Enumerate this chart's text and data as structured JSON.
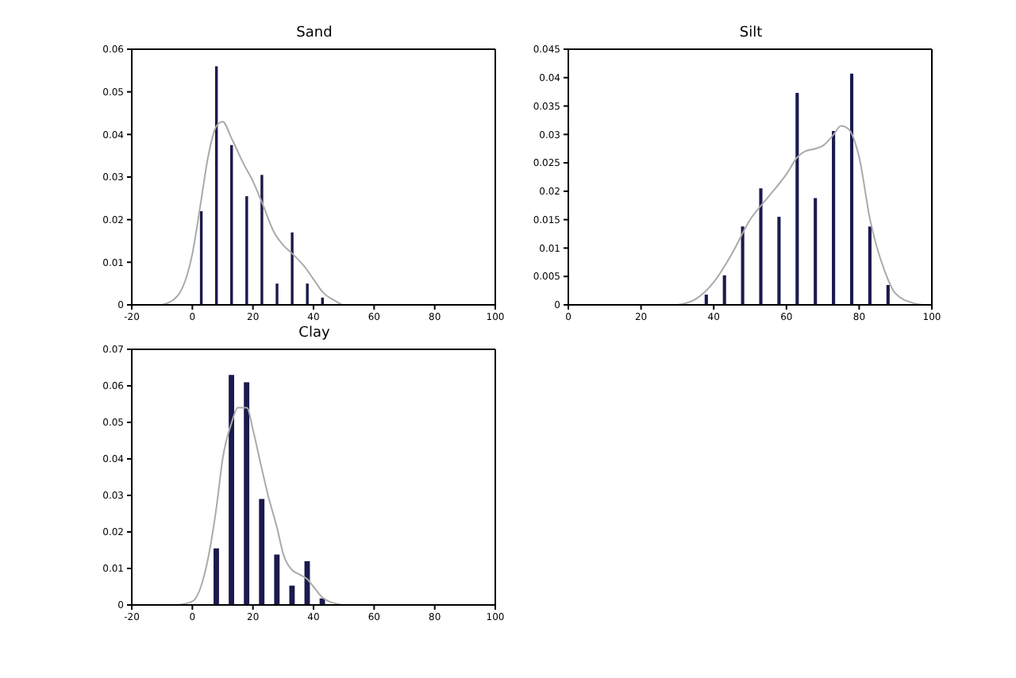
{
  "chart_data": [
    {
      "type": "bar",
      "title": "Sand",
      "xlim": [
        -20,
        100
      ],
      "xticks": [
        -20,
        0,
        20,
        40,
        60,
        80,
        100
      ],
      "ylim": [
        0,
        0.06
      ],
      "yticks": [
        0,
        0.01,
        0.02,
        0.03,
        0.04,
        0.05,
        0.06
      ],
      "grid": false,
      "legend": false,
      "series": [
        {
          "color": "#1a1a4e",
          "x": [
            3,
            8,
            13,
            18,
            23,
            28,
            33,
            38,
            43
          ],
          "values": [
            0.022,
            0.056,
            0.0375,
            0.0255,
            0.0305,
            0.005,
            0.017,
            0.005,
            0.0017
          ]
        },
        {
          "type": "line",
          "color": "#aaaaaa",
          "x": [
            -10,
            -5,
            0,
            3,
            5,
            8,
            10,
            13,
            17,
            20,
            23,
            27,
            30,
            33,
            37,
            40,
            43,
            47,
            50,
            55
          ],
          "values": [
            0,
            0.002,
            0.012,
            0.025,
            0.034,
            0.042,
            0.043,
            0.039,
            0.033,
            0.029,
            0.024,
            0.017,
            0.014,
            0.012,
            0.009,
            0.006,
            0.003,
            0.001,
            0,
            0
          ]
        }
      ]
    },
    {
      "type": "bar",
      "title": "Silt",
      "xlim": [
        0,
        100
      ],
      "xticks": [
        0,
        20,
        40,
        60,
        80,
        100
      ],
      "ylim": [
        0,
        0.045
      ],
      "yticks": [
        0,
        0.005,
        0.01,
        0.015,
        0.02,
        0.025,
        0.03,
        0.035,
        0.04,
        0.045
      ],
      "grid": false,
      "legend": false,
      "series": [
        {
          "color": "#1a1a4e",
          "x": [
            38,
            43,
            48,
            53,
            58,
            63,
            68,
            73,
            78,
            83,
            88
          ],
          "values": [
            0.0018,
            0.0052,
            0.0138,
            0.0205,
            0.0155,
            0.0373,
            0.0188,
            0.0306,
            0.0407,
            0.0138,
            0.0035
          ]
        },
        {
          "type": "line",
          "color": "#aaaaaa",
          "x": [
            30,
            35,
            40,
            45,
            50,
            55,
            60,
            63,
            65,
            68,
            70,
            73,
            75,
            77,
            80,
            83,
            87,
            90,
            95,
            98
          ],
          "values": [
            0,
            0.001,
            0.004,
            0.009,
            0.015,
            0.019,
            0.023,
            0.026,
            0.027,
            0.0275,
            0.028,
            0.03,
            0.0315,
            0.031,
            0.026,
            0.015,
            0.006,
            0.002,
            0.0003,
            0
          ]
        }
      ]
    },
    {
      "type": "bar",
      "title": "Clay",
      "xlim": [
        -20,
        100
      ],
      "xticks": [
        -20,
        0,
        20,
        40,
        60,
        80,
        100
      ],
      "ylim": [
        0,
        0.07
      ],
      "yticks": [
        0,
        0.01,
        0.02,
        0.03,
        0.04,
        0.05,
        0.06,
        0.07
      ],
      "grid": false,
      "legend": false,
      "series": [
        {
          "color": "#1a1a4e",
          "x": [
            8,
            13,
            18,
            23,
            28,
            33,
            38,
            43
          ],
          "values": [
            0.0155,
            0.063,
            0.061,
            0.029,
            0.0138,
            0.0053,
            0.012,
            0.0018
          ]
        },
        {
          "type": "line",
          "color": "#aaaaaa",
          "x": [
            -5,
            0,
            5,
            8,
            10,
            13,
            15,
            18,
            20,
            23,
            25,
            28,
            30,
            33,
            35,
            38,
            40,
            43,
            45,
            50
          ],
          "values": [
            0,
            0.001,
            0.012,
            0.027,
            0.04,
            0.05,
            0.054,
            0.054,
            0.048,
            0.037,
            0.03,
            0.021,
            0.014,
            0.0095,
            0.0085,
            0.007,
            0.005,
            0.002,
            0.001,
            0
          ]
        }
      ]
    }
  ]
}
